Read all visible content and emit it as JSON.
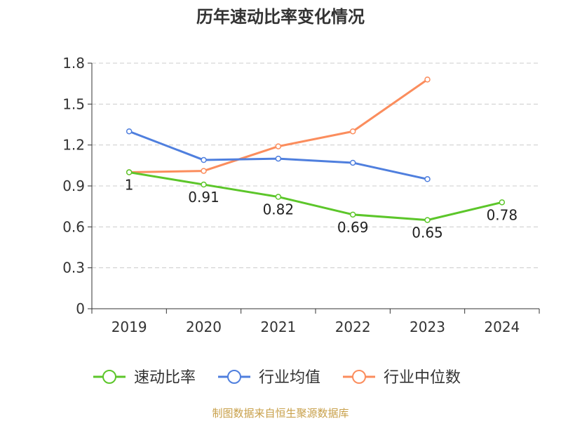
{
  "chart_data": {
    "type": "line",
    "title": "历年速动比率变化情况",
    "categories": [
      "2019",
      "2020",
      "2021",
      "2022",
      "2023",
      "2024"
    ],
    "ylim": [
      0,
      1.8
    ],
    "yticks": [
      "0",
      "0.3",
      "0.6",
      "0.9",
      "1.2",
      "1.5",
      "1.8"
    ],
    "grid": true,
    "legend_position": "bottom",
    "series": [
      {
        "name": "速动比率",
        "color": "#5cc62a",
        "values": [
          1,
          0.91,
          0.82,
          0.69,
          0.65,
          0.78
        ],
        "labels": [
          "1",
          "0.91",
          "0.82",
          "0.69",
          "0.65",
          "0.78"
        ]
      },
      {
        "name": "行业均值",
        "color": "#4f7fde",
        "values": [
          1.3,
          1.09,
          1.1,
          1.07,
          0.95,
          null
        ]
      },
      {
        "name": "行业中位数",
        "color": "#fb8d5d",
        "values": [
          1.0,
          1.01,
          1.19,
          1.3,
          1.68,
          null
        ]
      }
    ],
    "source": "制图数据来自恒生聚源数据库"
  }
}
